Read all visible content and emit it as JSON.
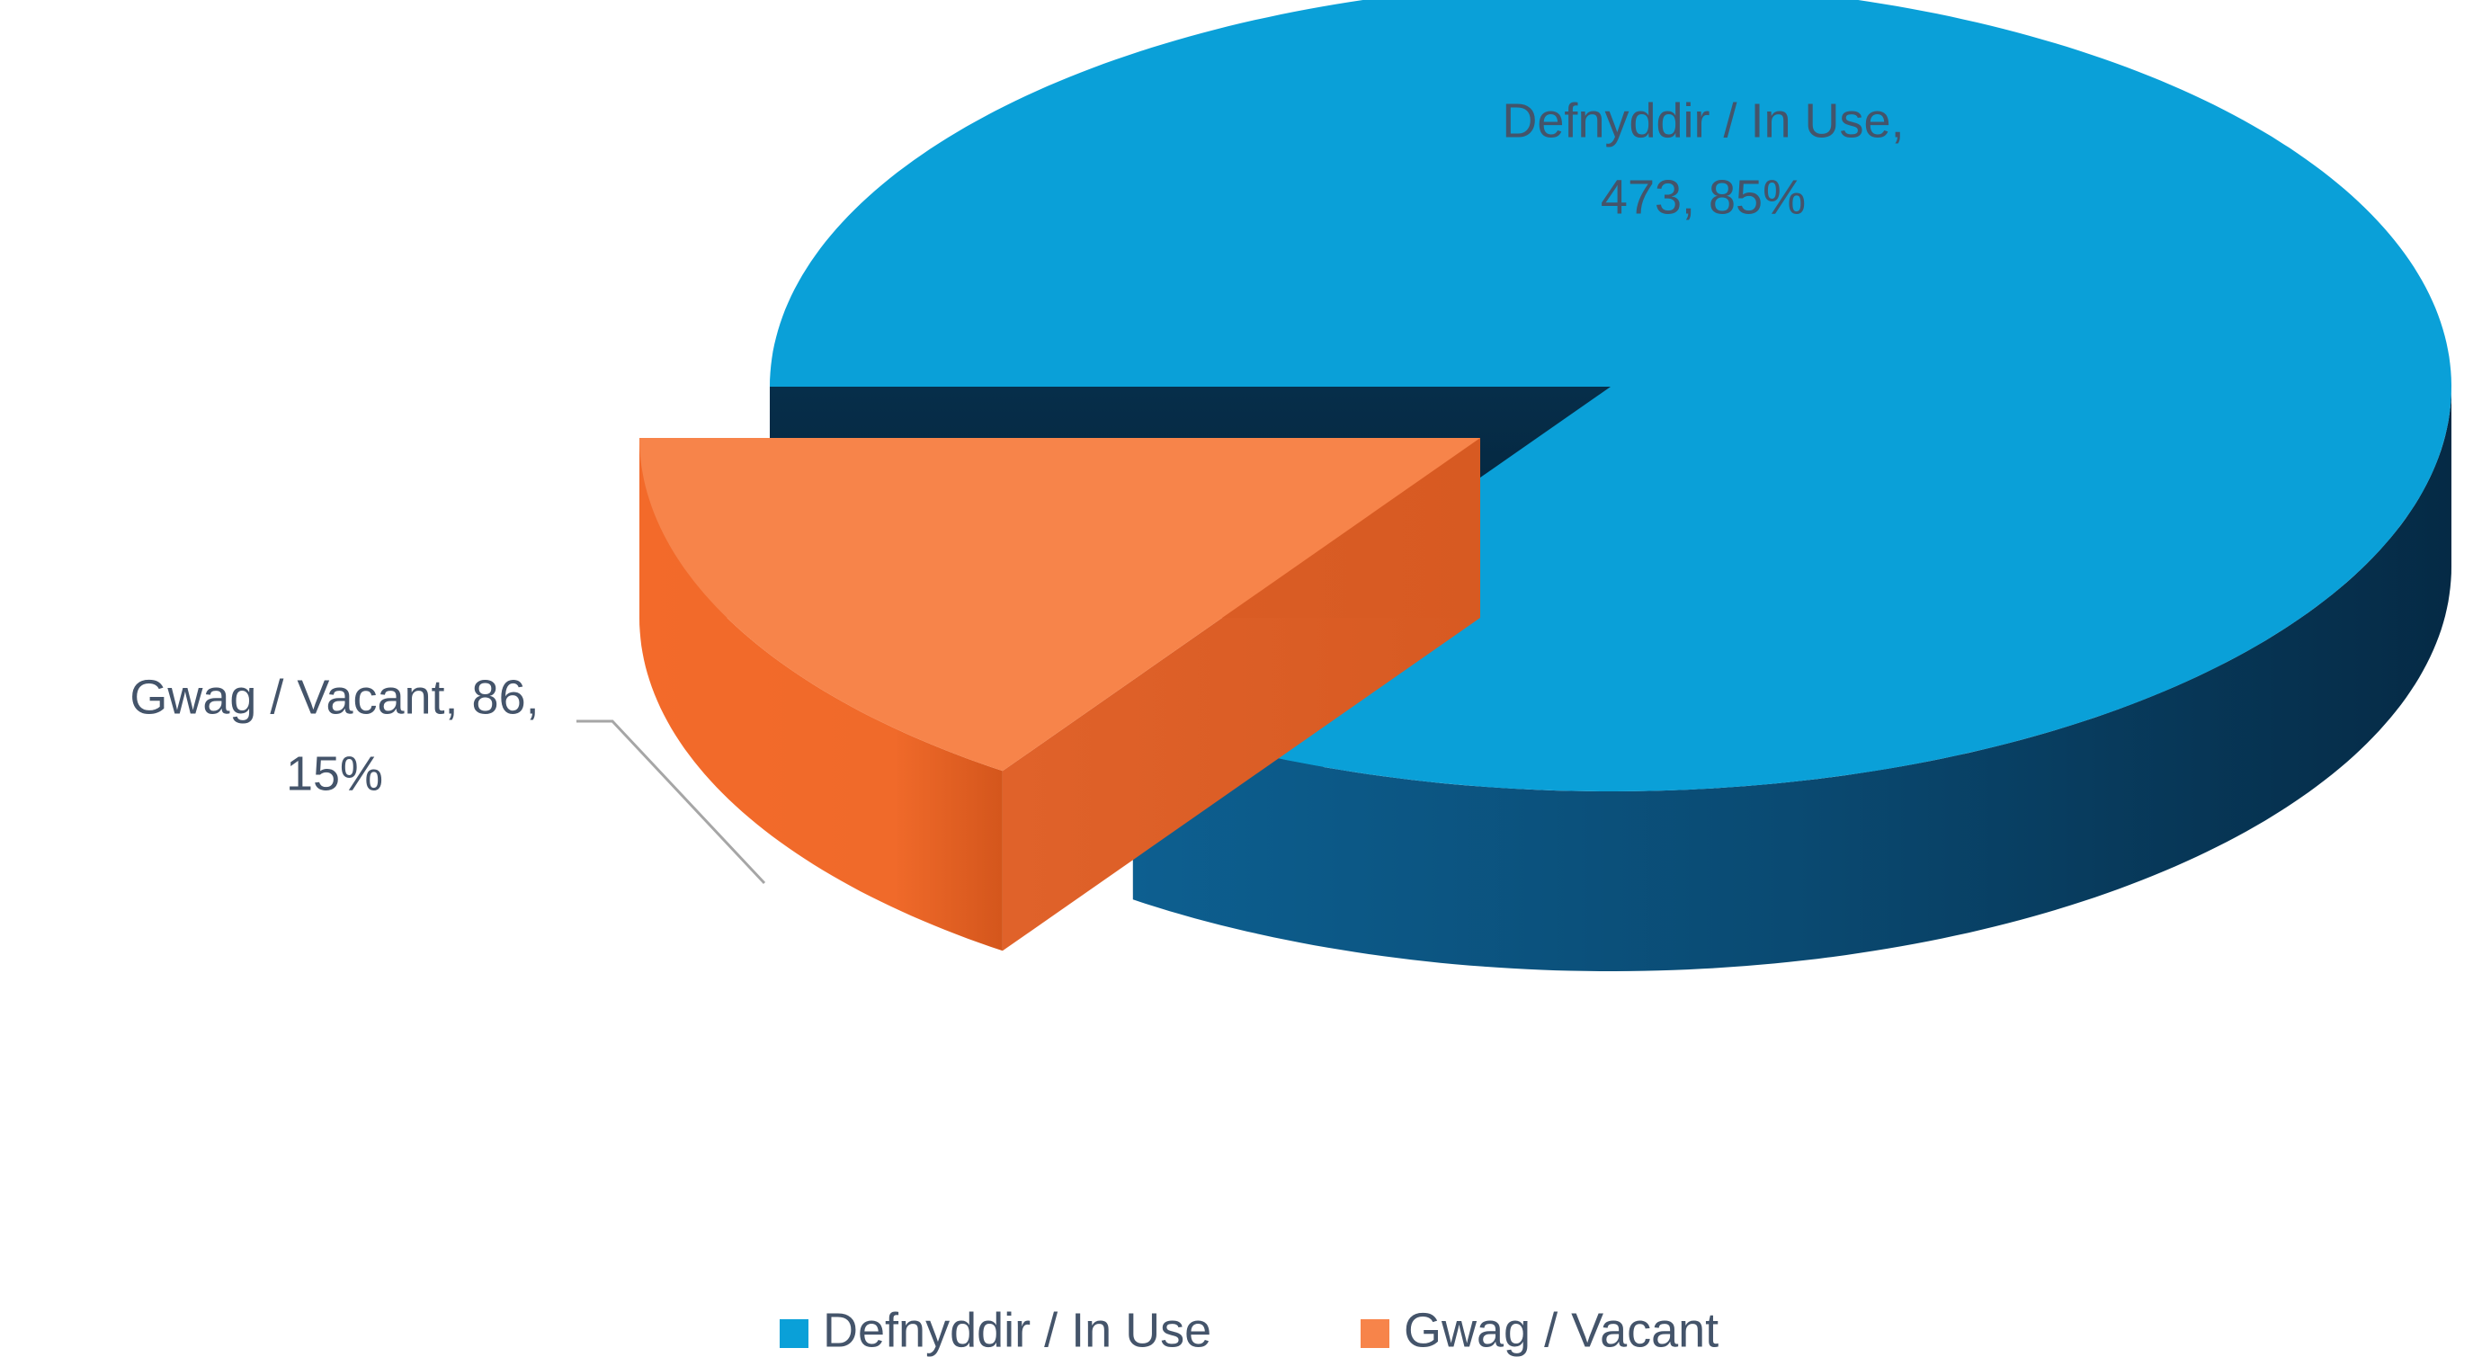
{
  "chart_data": {
    "type": "pie",
    "categories": [
      "Defnyddir / In Use",
      "Gwag / Vacant"
    ],
    "values": [
      473,
      86
    ],
    "value_labels": [
      [
        "Defnyddir / In Use,",
        "473, 85%"
      ],
      [
        "Gwag / Vacant, 86,",
        "15%"
      ]
    ],
    "colors": [
      "#0aa0d8",
      "#f7844a"
    ],
    "legend": "bottom"
  }
}
